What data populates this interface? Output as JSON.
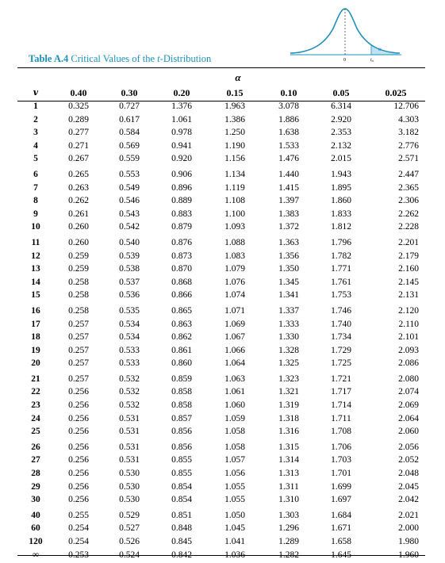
{
  "figure": {
    "alpha_label": "α",
    "zero_label": "0",
    "t_label": "t",
    "t_subscript": "α",
    "colors": {
      "curve": "#1f8fb8",
      "shade": "#bfe3f0"
    }
  },
  "title": {
    "label": "Table A.4",
    "text_before": " Critical Values of the ",
    "t": "t",
    "text_after": "-Distribution"
  },
  "table": {
    "alpha_symbol": "α",
    "row_header": "v",
    "columns": [
      "0.40",
      "0.30",
      "0.20",
      "0.15",
      "0.10",
      "0.05",
      "0.025"
    ],
    "rows": [
      {
        "v": "1",
        "vals": [
          "0.325",
          "0.727",
          "1.376",
          "1.963",
          "3.078",
          "6.314",
          "12.706"
        ]
      },
      {
        "v": "2",
        "vals": [
          "0.289",
          "0.617",
          "1.061",
          "1.386",
          "1.886",
          "2.920",
          "4.303"
        ]
      },
      {
        "v": "3",
        "vals": [
          "0.277",
          "0.584",
          "0.978",
          "1.250",
          "1.638",
          "2.353",
          "3.182"
        ]
      },
      {
        "v": "4",
        "vals": [
          "0.271",
          "0.569",
          "0.941",
          "1.190",
          "1.533",
          "2.132",
          "2.776"
        ]
      },
      {
        "v": "5",
        "vals": [
          "0.267",
          "0.559",
          "0.920",
          "1.156",
          "1.476",
          "2.015",
          "2.571"
        ]
      },
      {
        "v": "6",
        "vals": [
          "0.265",
          "0.553",
          "0.906",
          "1.134",
          "1.440",
          "1.943",
          "2.447"
        ]
      },
      {
        "v": "7",
        "vals": [
          "0.263",
          "0.549",
          "0.896",
          "1.119",
          "1.415",
          "1.895",
          "2.365"
        ]
      },
      {
        "v": "8",
        "vals": [
          "0.262",
          "0.546",
          "0.889",
          "1.108",
          "1.397",
          "1.860",
          "2.306"
        ]
      },
      {
        "v": "9",
        "vals": [
          "0.261",
          "0.543",
          "0.883",
          "1.100",
          "1.383",
          "1.833",
          "2.262"
        ]
      },
      {
        "v": "10",
        "vals": [
          "0.260",
          "0.542",
          "0.879",
          "1.093",
          "1.372",
          "1.812",
          "2.228"
        ]
      },
      {
        "v": "11",
        "vals": [
          "0.260",
          "0.540",
          "0.876",
          "1.088",
          "1.363",
          "1.796",
          "2.201"
        ]
      },
      {
        "v": "12",
        "vals": [
          "0.259",
          "0.539",
          "0.873",
          "1.083",
          "1.356",
          "1.782",
          "2.179"
        ]
      },
      {
        "v": "13",
        "vals": [
          "0.259",
          "0.538",
          "0.870",
          "1.079",
          "1.350",
          "1.771",
          "2.160"
        ]
      },
      {
        "v": "14",
        "vals": [
          "0.258",
          "0.537",
          "0.868",
          "1.076",
          "1.345",
          "1.761",
          "2.145"
        ]
      },
      {
        "v": "15",
        "vals": [
          "0.258",
          "0.536",
          "0.866",
          "1.074",
          "1.341",
          "1.753",
          "2.131"
        ]
      },
      {
        "v": "16",
        "vals": [
          "0.258",
          "0.535",
          "0.865",
          "1.071",
          "1.337",
          "1.746",
          "2.120"
        ]
      },
      {
        "v": "17",
        "vals": [
          "0.257",
          "0.534",
          "0.863",
          "1.069",
          "1.333",
          "1.740",
          "2.110"
        ]
      },
      {
        "v": "18",
        "vals": [
          "0.257",
          "0.534",
          "0.862",
          "1.067",
          "1.330",
          "1.734",
          "2.101"
        ]
      },
      {
        "v": "19",
        "vals": [
          "0.257",
          "0.533",
          "0.861",
          "1.066",
          "1.328",
          "1.729",
          "2.093"
        ]
      },
      {
        "v": "20",
        "vals": [
          "0.257",
          "0.533",
          "0.860",
          "1.064",
          "1.325",
          "1.725",
          "2.086"
        ]
      },
      {
        "v": "21",
        "vals": [
          "0.257",
          "0.532",
          "0.859",
          "1.063",
          "1.323",
          "1.721",
          "2.080"
        ]
      },
      {
        "v": "22",
        "vals": [
          "0.256",
          "0.532",
          "0.858",
          "1.061",
          "1.321",
          "1.717",
          "2.074"
        ]
      },
      {
        "v": "23",
        "vals": [
          "0.256",
          "0.532",
          "0.858",
          "1.060",
          "1.319",
          "1.714",
          "2.069"
        ]
      },
      {
        "v": "24",
        "vals": [
          "0.256",
          "0.531",
          "0.857",
          "1.059",
          "1.318",
          "1.711",
          "2.064"
        ]
      },
      {
        "v": "25",
        "vals": [
          "0.256",
          "0.531",
          "0.856",
          "1.058",
          "1.316",
          "1.708",
          "2.060"
        ]
      },
      {
        "v": "26",
        "vals": [
          "0.256",
          "0.531",
          "0.856",
          "1.058",
          "1.315",
          "1.706",
          "2.056"
        ]
      },
      {
        "v": "27",
        "vals": [
          "0.256",
          "0.531",
          "0.855",
          "1.057",
          "1.314",
          "1.703",
          "2.052"
        ]
      },
      {
        "v": "28",
        "vals": [
          "0.256",
          "0.530",
          "0.855",
          "1.056",
          "1.313",
          "1.701",
          "2.048"
        ]
      },
      {
        "v": "29",
        "vals": [
          "0.256",
          "0.530",
          "0.854",
          "1.055",
          "1.311",
          "1.699",
          "2.045"
        ]
      },
      {
        "v": "30",
        "vals": [
          "0.256",
          "0.530",
          "0.854",
          "1.055",
          "1.310",
          "1.697",
          "2.042"
        ]
      },
      {
        "v": "40",
        "vals": [
          "0.255",
          "0.529",
          "0.851",
          "1.050",
          "1.303",
          "1.684",
          "2.021"
        ]
      },
      {
        "v": "60",
        "vals": [
          "0.254",
          "0.527",
          "0.848",
          "1.045",
          "1.296",
          "1.671",
          "2.000"
        ]
      },
      {
        "v": "120",
        "vals": [
          "0.254",
          "0.526",
          "0.845",
          "1.041",
          "1.289",
          "1.658",
          "1.980"
        ]
      },
      {
        "v": "∞",
        "vals": [
          "0.253",
          "0.524",
          "0.842",
          "1.036",
          "1.282",
          "1.645",
          "1.960"
        ]
      }
    ]
  }
}
